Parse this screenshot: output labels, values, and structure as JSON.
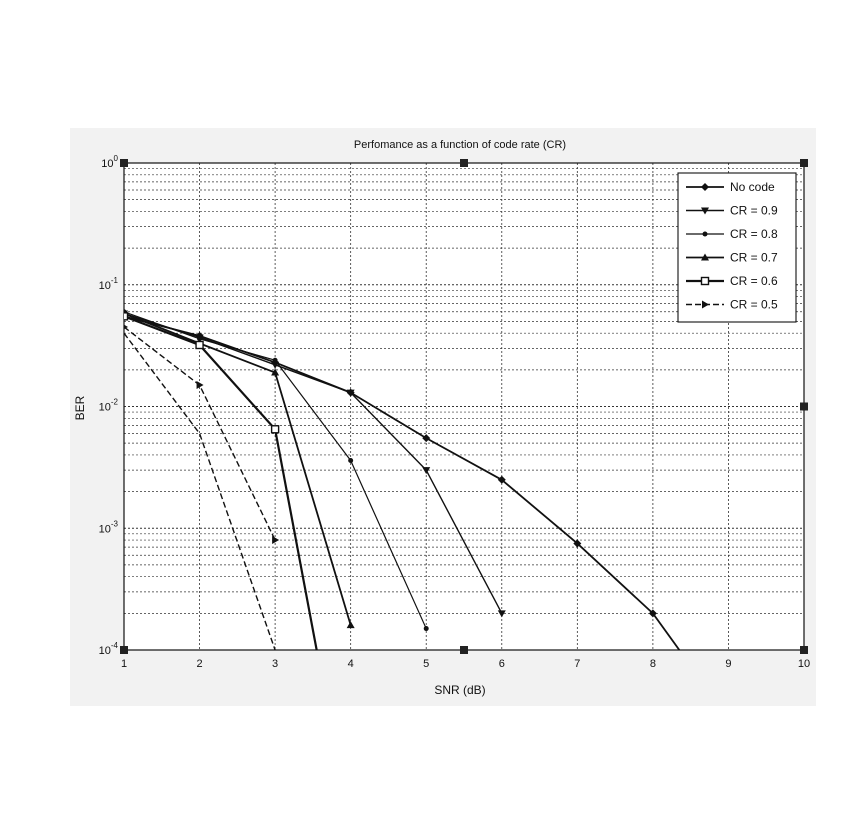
{
  "chart_data": {
    "type": "line",
    "title": "Perfomance as a function of code rate (CR)",
    "xlabel": "SNR (dB)",
    "ylabel": "BER",
    "xlim": [
      1,
      10
    ],
    "ylim": [
      0.0001,
      1
    ],
    "yscale": "log",
    "grid": true,
    "legend_position": "top-right",
    "x_ticks": [
      "1",
      "2",
      "3",
      "4",
      "5",
      "6",
      "7",
      "8",
      "9",
      "10"
    ],
    "y_ticks": [
      {
        "base": "10",
        "exp": "0",
        "value": 1
      },
      {
        "base": "10",
        "exp": "-1",
        "value": 0.1
      },
      {
        "base": "10",
        "exp": "-2",
        "value": 0.01
      },
      {
        "base": "10",
        "exp": "-3",
        "value": 0.001
      },
      {
        "base": "10",
        "exp": "-4",
        "value": 0.0001
      }
    ],
    "series": [
      {
        "name": "No code",
        "marker": "diamond",
        "dash": "solid",
        "width": 1.8,
        "x": [
          1,
          2,
          3,
          4,
          5,
          6,
          7,
          8,
          8.35
        ],
        "y": [
          0.055,
          0.038,
          0.023,
          0.013,
          0.0055,
          0.0025,
          0.00075,
          0.0002,
          0.0001
        ]
      },
      {
        "name": "CR = 0.9",
        "marker": "triangle-down",
        "dash": "solid",
        "width": 1.4,
        "x": [
          1,
          2,
          3,
          4,
          5,
          6
        ],
        "y": [
          0.058,
          0.037,
          0.022,
          0.013,
          0.003,
          0.0002
        ]
      },
      {
        "name": "CR = 0.8",
        "marker": "dot",
        "dash": "solid",
        "width": 1.2,
        "x": [
          1,
          2,
          3,
          4,
          5
        ],
        "y": [
          0.06,
          0.036,
          0.024,
          0.0036,
          0.00015
        ]
      },
      {
        "name": "CR = 0.7",
        "marker": "triangle-up",
        "dash": "solid",
        "width": 1.8,
        "x": [
          1,
          2,
          3,
          4
        ],
        "y": [
          0.058,
          0.033,
          0.019,
          0.00016
        ]
      },
      {
        "name": "CR = 0.6",
        "marker": "square",
        "dash": "solid",
        "width": 2.2,
        "x": [
          1,
          2,
          3,
          3.55
        ],
        "y": [
          0.055,
          0.032,
          0.0065,
          0.0001
        ]
      },
      {
        "name": "CR = 0.5",
        "marker": "triangle-right",
        "dash": "dashed",
        "width": 1.4,
        "x": [
          1,
          2,
          3
        ],
        "y": [
          0.045,
          0.015,
          0.0008
        ]
      },
      {
        "name": "",
        "marker": "none",
        "dash": "dashed",
        "width": 1.4,
        "x": [
          1,
          2,
          3
        ],
        "y": [
          0.04,
          0.006,
          0.0001
        ]
      }
    ]
  }
}
